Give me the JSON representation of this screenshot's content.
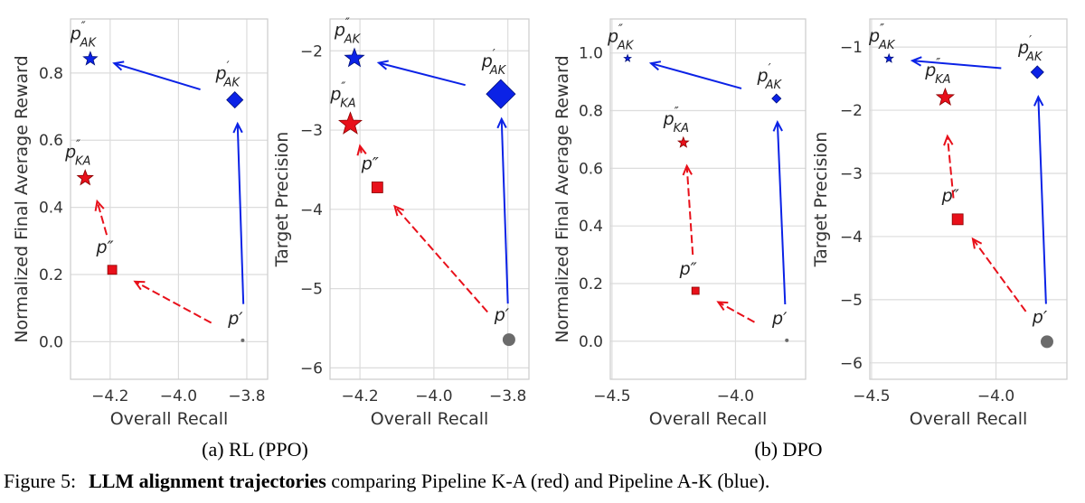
{
  "colors": {
    "red": "#e8101a",
    "blue": "#0b22e6",
    "gray": "#6b6b6b",
    "grid": "#dcdcdc",
    "frame": "#cccccc"
  },
  "captions": {
    "a": "(a) RL (PPO)",
    "b": "(b) DPO",
    "figure_prefix": "Figure 5:",
    "figure_bold": "LLM alignment trajectories",
    "figure_rest": " comparing Pipeline K-A (red) and Pipeline A-K (blue)."
  },
  "chart_data": [
    {
      "type": "scatter",
      "panel": "a",
      "xlabel": "Overall Recall",
      "ylabel": "Normalized Final Average Reward",
      "xlim": [
        -4.316,
        -3.739
      ],
      "ylim": [
        -0.112,
        0.961
      ],
      "grid": true,
      "xticks": [
        {
          "v": -4.2,
          "t": "−4.2"
        },
        {
          "v": -4.0,
          "t": "−4.0"
        },
        {
          "v": -3.8,
          "t": "−3.8"
        }
      ],
      "yticks": [
        {
          "v": 0,
          "t": "0.0"
        },
        {
          "v": 0.2,
          "t": "0.2"
        },
        {
          "v": 0.4,
          "t": "0.4"
        },
        {
          "v": 0.6,
          "t": "0.6"
        },
        {
          "v": 0.8,
          "t": "0.8"
        }
      ],
      "points": [
        {
          "id": "p_AK_pp",
          "x": -4.258,
          "y": 0.842,
          "marker": "star",
          "color": "blue",
          "label": {
            "main": "p",
            "prime": "″",
            "sub": "AK"
          }
        },
        {
          "id": "p_AK_p",
          "x": -3.835,
          "y": 0.72,
          "marker": "diamond",
          "color": "blue",
          "label": {
            "main": "p",
            "prime": "′",
            "sub": "AK"
          }
        },
        {
          "id": "p_KA_pp",
          "x": -4.273,
          "y": 0.487,
          "marker": "star",
          "color": "red",
          "label": {
            "main": "p",
            "prime": "″",
            "sub": "KA"
          }
        },
        {
          "id": "p_pp",
          "x": -4.194,
          "y": 0.214,
          "marker": "square",
          "color": "red",
          "label": {
            "main": "p″",
            "prime": "",
            "sub": ""
          }
        },
        {
          "id": "p_p",
          "x": -3.812,
          "y": 0.004,
          "marker": "circle",
          "color": "gray",
          "label": {
            "main": "p′",
            "prime": "",
            "sub": ""
          }
        }
      ],
      "arrows": [
        {
          "from": [
            -3.81,
            0.112
          ],
          "to": [
            -3.827,
            0.649
          ],
          "color": "blue",
          "style": "solid"
        },
        {
          "from": [
            -3.936,
            0.751
          ],
          "to": [
            -4.188,
            0.829
          ],
          "color": "blue",
          "style": "solid"
        },
        {
          "from": [
            -3.904,
            0.056
          ],
          "to": [
            -4.127,
            0.179
          ],
          "color": "red",
          "style": "dashed"
        },
        {
          "from": [
            -4.21,
            0.318
          ],
          "to": [
            -4.238,
            0.418
          ],
          "color": "red",
          "style": "dashed"
        }
      ]
    },
    {
      "type": "scatter",
      "panel": "a",
      "xlabel": "Overall Recall",
      "ylabel": "Target Precision",
      "xlim": [
        -4.281,
        -3.743
      ],
      "ylim": [
        -6.144,
        -1.598
      ],
      "grid": true,
      "xticks": [
        {
          "v": -4.2,
          "t": "−4.2"
        },
        {
          "v": -4.0,
          "t": "−4.0"
        },
        {
          "v": -3.8,
          "t": "−3.8"
        }
      ],
      "yticks": [
        {
          "v": -6,
          "t": "−6"
        },
        {
          "v": -5,
          "t": "−5"
        },
        {
          "v": -4,
          "t": "−4"
        },
        {
          "v": -3,
          "t": "−3"
        },
        {
          "v": -2,
          "t": "−2"
        }
      ],
      "points": [
        {
          "id": "p_AK_pp",
          "x": -4.215,
          "y": -2.095,
          "marker": "star",
          "color": "blue",
          "label": {
            "main": "p",
            "prime": "″",
            "sub": "AK"
          }
        },
        {
          "id": "p_AK_p",
          "x": -3.819,
          "y": -2.545,
          "marker": "diamond",
          "color": "blue",
          "label": {
            "main": "p",
            "prime": "′",
            "sub": "AK"
          }
        },
        {
          "id": "p_KA_pp",
          "x": -4.226,
          "y": -2.924,
          "marker": "star",
          "color": "red",
          "label": {
            "main": "p",
            "prime": "″",
            "sub": "KA"
          }
        },
        {
          "id": "p_pp",
          "x": -4.153,
          "y": -3.723,
          "marker": "square",
          "color": "red",
          "label": {
            "main": "p″",
            "prime": "",
            "sub": ""
          }
        },
        {
          "id": "p_p",
          "x": -3.797,
          "y": -5.644,
          "marker": "circle",
          "color": "gray",
          "label": {
            "main": "p′",
            "prime": "",
            "sub": ""
          }
        }
      ],
      "arrows": [
        {
          "from": [
            -3.8,
            -5.189
          ],
          "to": [
            -3.817,
            -2.86
          ],
          "color": "blue",
          "style": "solid"
        },
        {
          "from": [
            -3.915,
            -2.432
          ],
          "to": [
            -4.149,
            -2.152
          ],
          "color": "blue",
          "style": "solid"
        },
        {
          "from": [
            -3.855,
            -5.295
          ],
          "to": [
            -4.106,
            -3.962
          ],
          "color": "red",
          "style": "dashed"
        },
        {
          "from": [
            -4.196,
            -3.29
          ],
          "to": [
            -4.2,
            -3.2
          ],
          "color": "red",
          "style": "dashed"
        }
      ]
    },
    {
      "type": "scatter",
      "panel": "b",
      "xlabel": "Overall Recall",
      "ylabel": "Normalized Final Average Reward",
      "xlim": [
        -4.507,
        -3.716
      ],
      "ylim": [
        -0.132,
        1.118
      ],
      "grid": true,
      "xticks": [
        {
          "v": -4.5,
          "t": "−4.5"
        },
        {
          "v": -4.0,
          "t": "−4.0"
        }
      ],
      "yticks": [
        {
          "v": 0,
          "t": "0.0"
        },
        {
          "v": 0.2,
          "t": "0.2"
        },
        {
          "v": 0.4,
          "t": "0.4"
        },
        {
          "v": 0.6,
          "t": "0.6"
        },
        {
          "v": 0.8,
          "t": "0.8"
        },
        {
          "v": 1.0,
          "t": "1.0"
        }
      ],
      "points": [
        {
          "id": "p_AK_pp",
          "x": -4.437,
          "y": 0.981,
          "marker": "star",
          "color": "blue",
          "label": {
            "main": "p",
            "prime": "″",
            "sub": "AK"
          }
        },
        {
          "id": "p_AK_p",
          "x": -3.834,
          "y": 0.842,
          "marker": "diamond",
          "color": "blue",
          "label": {
            "main": "p",
            "prime": "′",
            "sub": "AK"
          }
        },
        {
          "id": "p_KA_pp",
          "x": -4.211,
          "y": 0.689,
          "marker": "star",
          "color": "red",
          "label": {
            "main": "p",
            "prime": "″",
            "sub": "KA"
          }
        },
        {
          "id": "p_pp",
          "x": -4.162,
          "y": 0.175,
          "marker": "square",
          "color": "red",
          "label": {
            "main": "p″",
            "prime": "",
            "sub": ""
          }
        },
        {
          "id": "p_p",
          "x": -3.792,
          "y": 0.003,
          "marker": "circle",
          "color": "gray",
          "label": {
            "main": "p′",
            "prime": "",
            "sub": ""
          }
        }
      ],
      "arrows": [
        {
          "from": [
            -3.799,
            0.128
          ],
          "to": [
            -3.83,
            0.76
          ],
          "color": "blue",
          "style": "solid"
        },
        {
          "from": [
            -3.976,
            0.877
          ],
          "to": [
            -4.342,
            0.964
          ],
          "color": "blue",
          "style": "solid"
        },
        {
          "from": [
            -4.173,
            0.3
          ],
          "to": [
            -4.197,
            0.608
          ],
          "color": "red",
          "style": "dashed"
        },
        {
          "from": [
            -3.923,
            0.066
          ],
          "to": [
            -4.07,
            0.136
          ],
          "color": "red",
          "style": "dashed"
        }
      ]
    },
    {
      "type": "scatter",
      "panel": "b",
      "xlabel": "Overall Recall",
      "ylabel": "Target Precision",
      "xlim": [
        -4.507,
        -3.715
      ],
      "ylim": [
        -6.26,
        -0.555
      ],
      "grid": true,
      "xticks": [
        {
          "v": -4.5,
          "t": "−4.5"
        },
        {
          "v": -4.0,
          "t": "−4.0"
        }
      ],
      "yticks": [
        {
          "v": -6,
          "t": "−6"
        },
        {
          "v": -5,
          "t": "−5"
        },
        {
          "v": -4,
          "t": "−4"
        },
        {
          "v": -3,
          "t": "−3"
        },
        {
          "v": -2,
          "t": "−2"
        },
        {
          "v": -1,
          "t": "−1"
        }
      ],
      "points": [
        {
          "id": "p_AK_pp",
          "x": -4.43,
          "y": -1.182,
          "marker": "star",
          "color": "blue",
          "label": {
            "main": "p",
            "prime": "″",
            "sub": "AK"
          }
        },
        {
          "id": "p_AK_p",
          "x": -3.834,
          "y": -1.397,
          "marker": "diamond",
          "color": "blue",
          "label": {
            "main": "p",
            "prime": "′",
            "sub": "AK"
          }
        },
        {
          "id": "p_KA_pp",
          "x": -4.204,
          "y": -1.799,
          "marker": "star",
          "color": "red",
          "label": {
            "main": "p",
            "prime": "″",
            "sub": "KA"
          }
        },
        {
          "id": "p_pp",
          "x": -4.154,
          "y": -3.727,
          "marker": "square",
          "color": "red",
          "label": {
            "main": "p″",
            "prime": "",
            "sub": ""
          }
        },
        {
          "id": "p_p",
          "x": -3.795,
          "y": -5.665,
          "marker": "circle",
          "color": "gray",
          "label": {
            "main": "p′",
            "prime": "",
            "sub": ""
          }
        }
      ],
      "arrows": [
        {
          "from": [
            -3.799,
            -5.067
          ],
          "to": [
            -3.83,
            -1.789
          ],
          "color": "blue",
          "style": "solid"
        },
        {
          "from": [
            -3.979,
            -1.335
          ],
          "to": [
            -4.336,
            -1.215
          ],
          "color": "blue",
          "style": "solid"
        },
        {
          "from": [
            -4.171,
            -3.392
          ],
          "to": [
            -4.195,
            -2.411
          ],
          "color": "red",
          "style": "dashed"
        },
        {
          "from": [
            -3.88,
            -5.187
          ],
          "to": [
            -4.093,
            -4.038
          ],
          "color": "red",
          "style": "dashed"
        }
      ]
    }
  ]
}
